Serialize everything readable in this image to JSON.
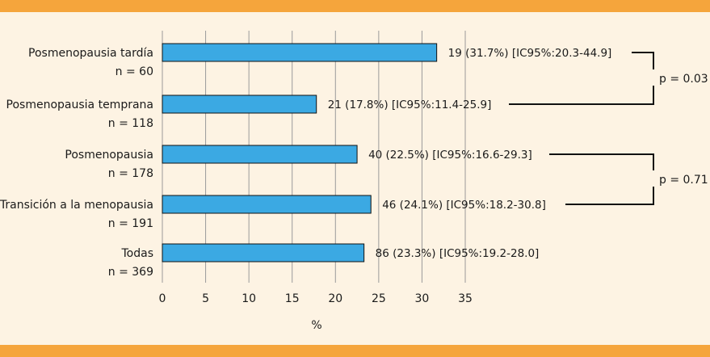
{
  "colors": {
    "background": "#FDF3E3",
    "band": "#F5A53C",
    "bar": "#3BA9E3",
    "grid": "#9A9A9A",
    "ink": "#1a1a1a"
  },
  "chart_data": {
    "type": "bar",
    "orientation": "horizontal",
    "categories": [
      {
        "label": "Posmenopausia tardía",
        "n": "n = 60"
      },
      {
        "label": "Posmenopausia temprana",
        "n": "n = 118"
      },
      {
        "label": "Posmenopausia",
        "n": "n = 178"
      },
      {
        "label": "Transición a la menopausia",
        "n": "n = 191"
      },
      {
        "label": "Todas",
        "n": "n = 369"
      }
    ],
    "values": [
      31.7,
      17.8,
      22.5,
      24.1,
      23.3
    ],
    "data_labels": [
      "19 (31.7%) [IC95%:20.3-44.9]",
      "21 (17.8%) [IC95%:11.4-25.9]",
      "40 (22.5%) [IC95%:16.6-29.3]",
      "46 (24.1%) [IC95%:18.2-30.8]",
      "86 (23.3%) [IC95%:19.2-28.0]"
    ],
    "xlabel": "%",
    "xlim": [
      0,
      35
    ],
    "xticks": [
      0,
      5,
      10,
      15,
      20,
      25,
      30,
      35
    ],
    "grid": "vertical",
    "comparisons": [
      {
        "between": [
          0,
          1
        ],
        "label": "p = 0.03"
      },
      {
        "between": [
          2,
          3
        ],
        "label": "p = 0.71"
      }
    ]
  }
}
